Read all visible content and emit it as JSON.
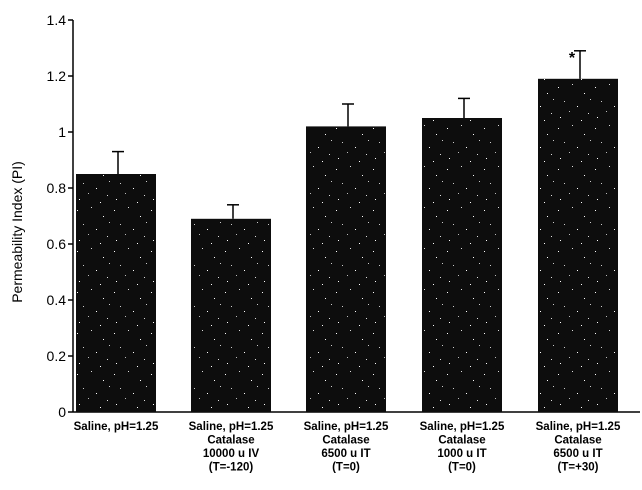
{
  "chart_data": {
    "type": "bar",
    "ylabel": "Permeability Index (PI)",
    "ylim": [
      0,
      1.4
    ],
    "yticks": [
      0,
      0.2,
      0.4,
      0.6,
      0.8,
      1,
      1.2,
      1.4
    ],
    "ytick_labels": [
      "0",
      "0.2",
      "0.4",
      "0.6",
      "0.8",
      "1",
      "1.2",
      "1.4"
    ],
    "grid": false,
    "categories": [
      [
        "Saline, pH=1.25"
      ],
      [
        "Saline, pH=1.25",
        "Catalase",
        "10000 u IV",
        "(T=-120)"
      ],
      [
        "Saline, pH=1.25",
        "Catalase",
        "6500 u IT",
        "(T=0)"
      ],
      [
        "Saline, pH=1.25",
        "Catalase",
        "1000 u IT",
        "(T=0)"
      ],
      [
        "Saline, pH=1.25",
        "Catalase",
        "6500 u IT",
        "(T=+30)"
      ]
    ],
    "values": [
      0.85,
      0.69,
      1.02,
      1.05,
      1.19
    ],
    "errors": [
      0.08,
      0.05,
      0.08,
      0.07,
      0.1
    ],
    "annotations": [
      "",
      "",
      "",
      "",
      "*"
    ],
    "bar_color": "#0d0d0d",
    "speckle_color": "#ffffff"
  }
}
